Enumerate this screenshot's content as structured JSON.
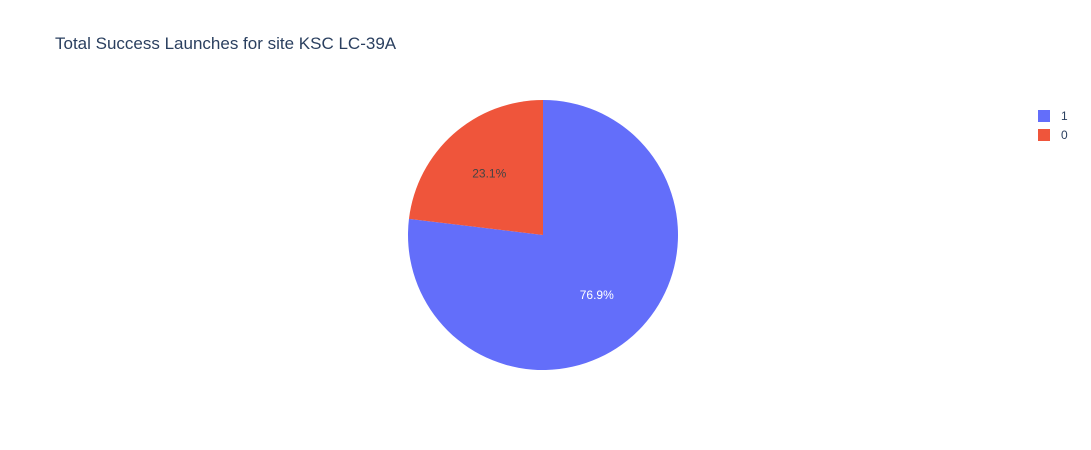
{
  "chart_data": {
    "type": "pie",
    "title": "Total Success Launches for site KSC LC-39A",
    "categories": [
      "1",
      "0"
    ],
    "values": [
      76.9,
      23.1
    ],
    "labels": [
      "76.9%",
      "23.1%"
    ],
    "colors": [
      "#636efa",
      "#ef553b"
    ],
    "label_colors": [
      "#ffffff",
      "#444444"
    ],
    "start_angle_deg": 90,
    "direction": "clockwise",
    "legend": {
      "placement": "top-right",
      "entries": [
        "1",
        "0"
      ]
    }
  }
}
